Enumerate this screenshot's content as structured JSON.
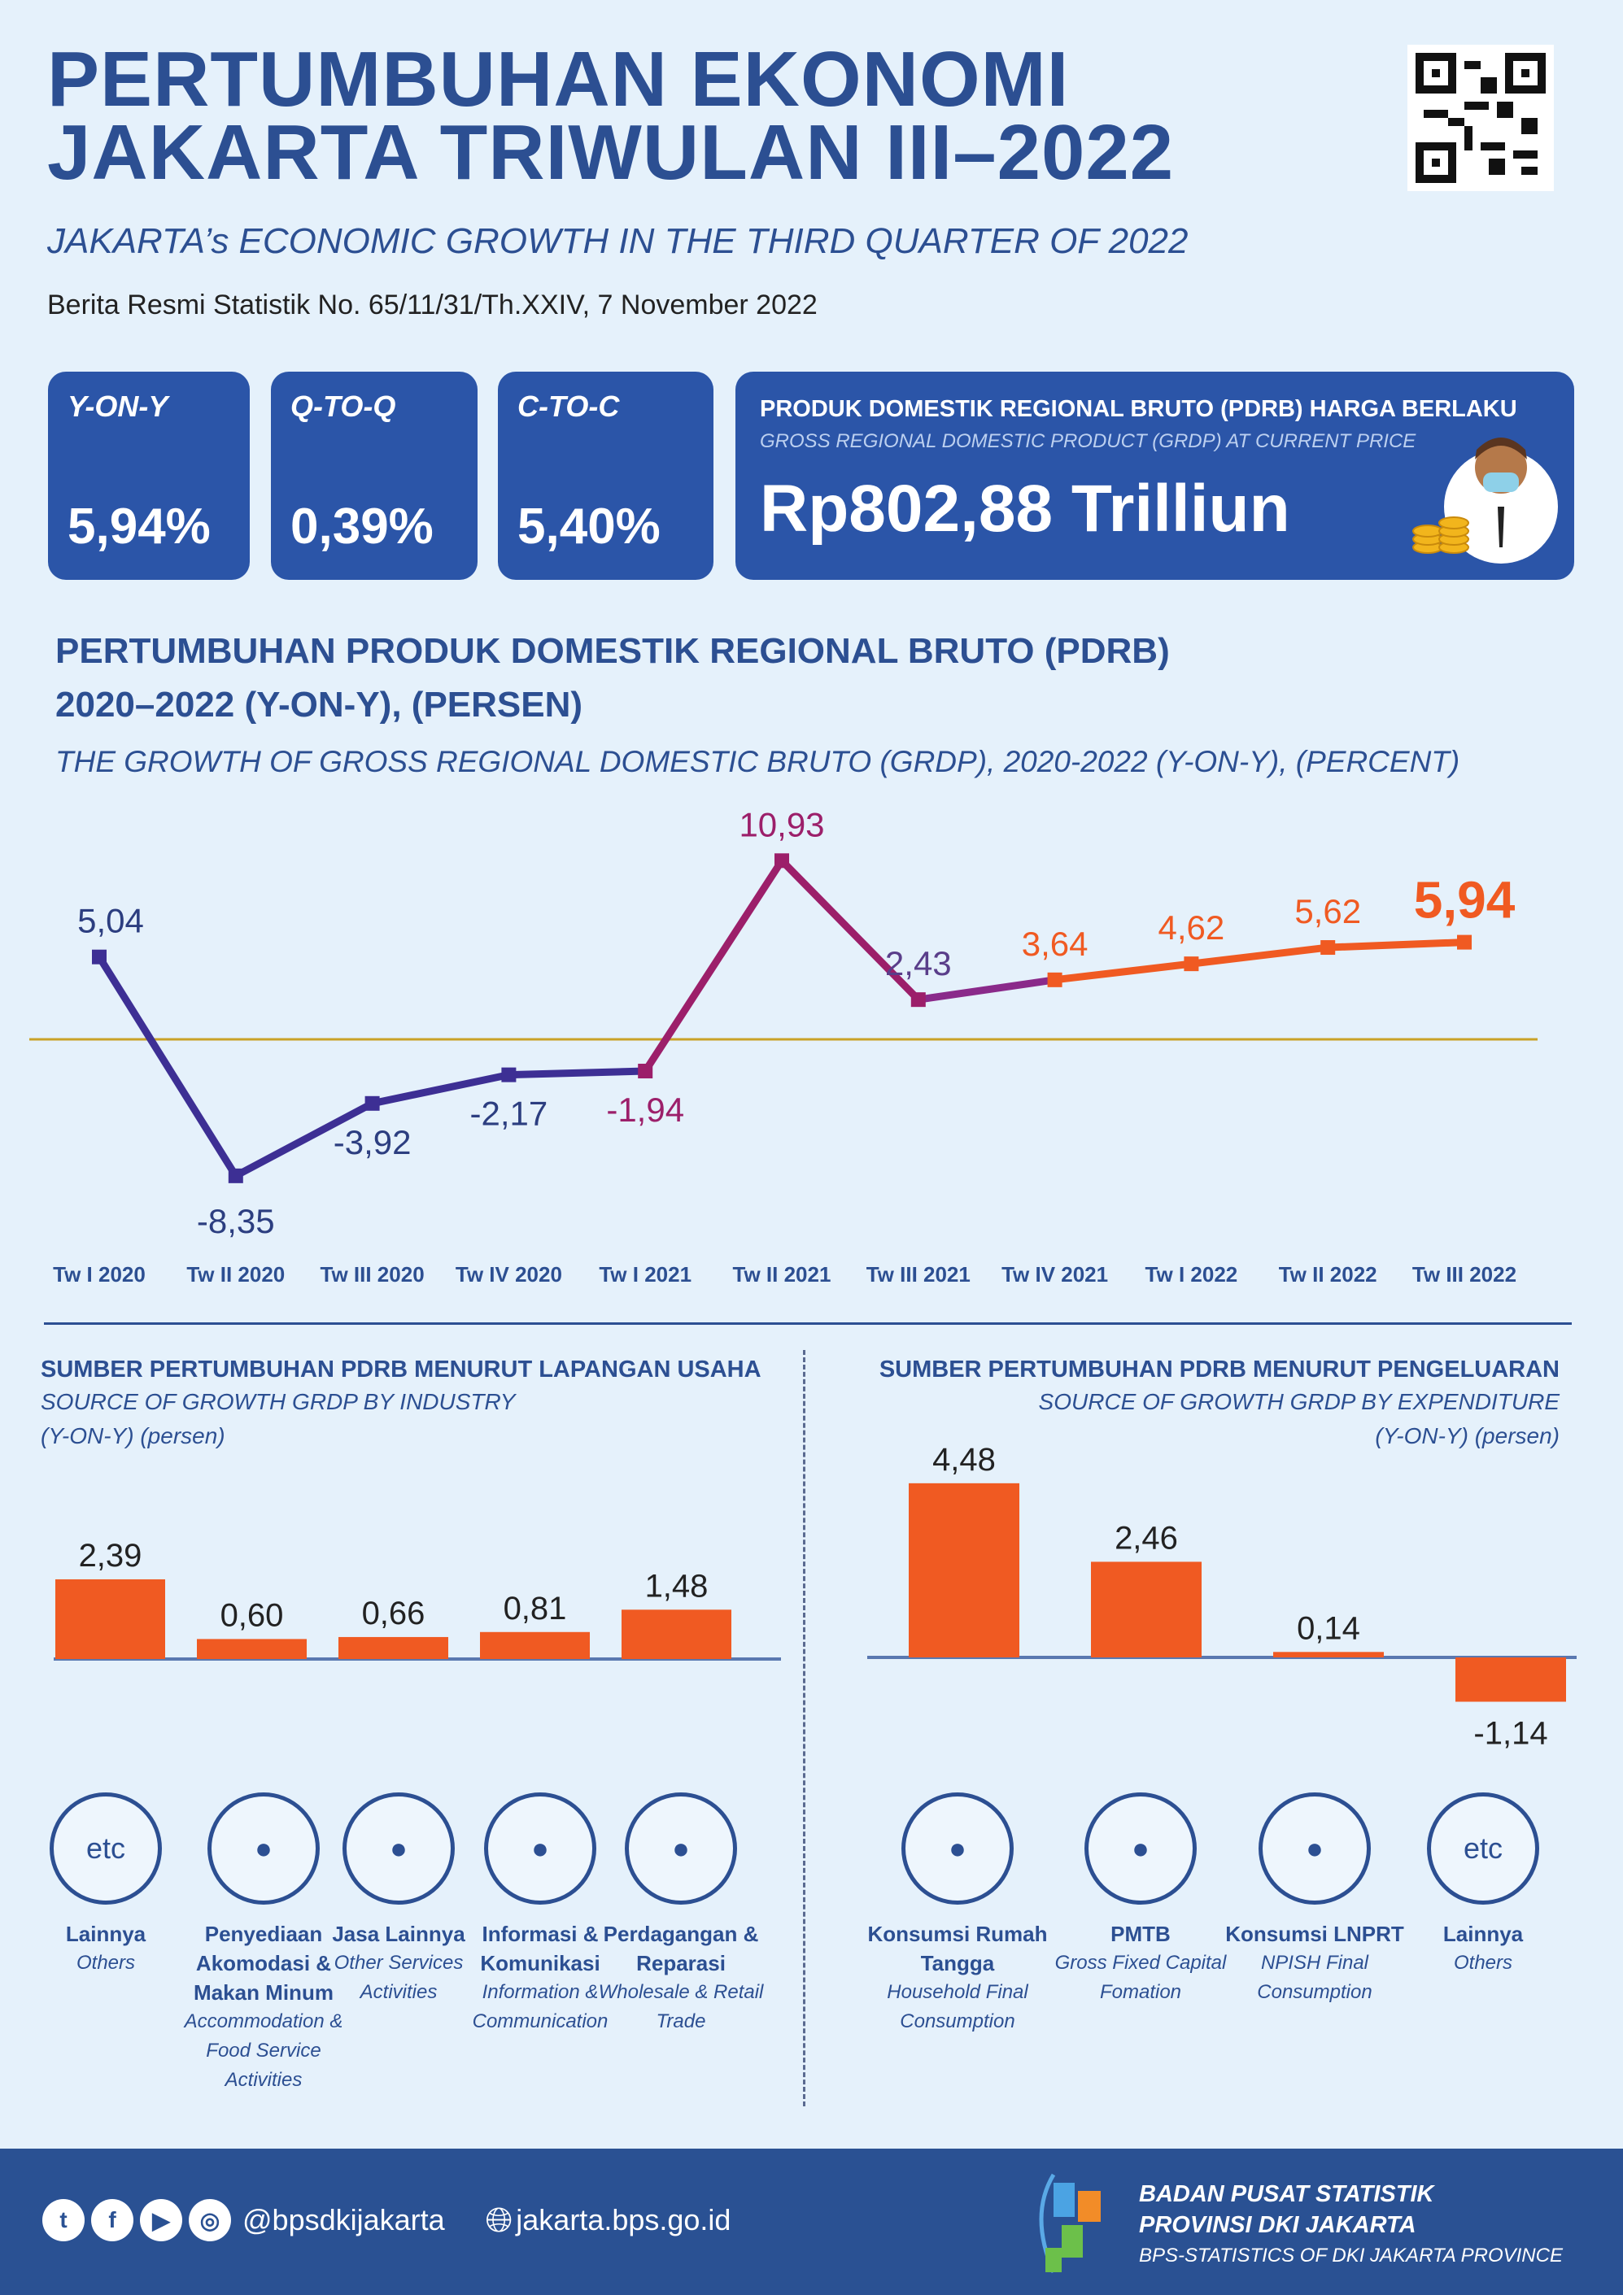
{
  "header": {
    "title_line1": "PERTUMBUHAN EKONOMI",
    "title_line2": "JAKARTA TRIWULAN III–2022",
    "subtitle": "JAKARTA’s ECONOMIC GROWTH IN THE THIRD QUARTER OF 2022",
    "release": "Berita Resmi Statistik No. 65/11/31/Th.XXIV, 7 November 2022"
  },
  "kpis": [
    {
      "label": "Y-ON-Y",
      "value": "5,94%"
    },
    {
      "label": "Q-TO-Q",
      "value": "0,39%"
    },
    {
      "label": "C-TO-C",
      "value": "5,40%"
    }
  ],
  "pdrb": {
    "title": "PRODUK DOMESTIK REGIONAL BRUTO (PDRB) HARGA BERLAKU",
    "subtitle": "GROSS REGIONAL DOMESTIC PRODUCT (GRDP) AT CURRENT PRICE",
    "value": "Rp802,88 Trilliun"
  },
  "colors": {
    "primary": "#2c4f92",
    "box": "#2b55a8",
    "orange": "#f05a22",
    "magenta": "#9c1f6a",
    "purple": "#3d2f94",
    "background": "#e5f1fb"
  },
  "chart_data": [
    {
      "type": "line",
      "title_line1": "PERTUMBUHAN PRODUK DOMESTIK REGIONAL BRUTO (PDRB)",
      "title_line2": "2020–2022 (Y-ON-Y), (PERSEN)",
      "subtitle": "THE GROWTH OF GROSS REGIONAL DOMESTIC BRUTO (GRDP), 2020-2022 (Y-ON-Y), (PERCENT)",
      "categories": [
        "Tw I 2020",
        "Tw II 2020",
        "Tw III 2020",
        "Tw IV 2020",
        "Tw I 2021",
        "Tw II 2021",
        "Tw III 2021",
        "Tw IV 2021",
        "Tw I 2022",
        "Tw II 2022",
        "Tw III 2022"
      ],
      "values": [
        5.04,
        -8.35,
        -3.92,
        -2.17,
        -1.94,
        10.93,
        2.43,
        3.64,
        4.62,
        5.62,
        5.94
      ],
      "labels": [
        "5,04",
        "-8,35",
        "-3,92",
        "-2,17",
        "-1,94",
        "10,93",
        "2,43",
        "3,64",
        "4,62",
        "5,62",
        "5,94"
      ]
    },
    {
      "type": "bar",
      "title": "SUMBER PERTUMBUHAN PDRB MENURUT LAPANGAN USAHA",
      "subtitle": "SOURCE OF GROWTH GRDP BY INDUSTRY",
      "unit": "(Y-ON-Y) (persen)",
      "values": [
        2.39,
        0.6,
        0.66,
        0.81,
        1.48
      ],
      "labels": [
        "2,39",
        "0,60",
        "0,66",
        "0,81",
        "1,48"
      ],
      "categories": [
        {
          "id": "Lainnya",
          "en": "Others",
          "icon": "etc"
        },
        {
          "id": "Penyediaan Akomodasi & Makan Minum",
          "en": "Accommodation & Food Service Activities",
          "icon": "hotel-icon"
        },
        {
          "id": "Jasa Lainnya",
          "en": "Other Services Activities",
          "icon": "services-icon"
        },
        {
          "id": "Informasi & Komunikasi",
          "en": "Information & Communication",
          "icon": "tower-icon"
        },
        {
          "id": "Perdagangan & Reparasi",
          "en": "Wholesale & Retail Trade",
          "icon": "trade-icon"
        }
      ]
    },
    {
      "type": "bar",
      "title": "SUMBER PERTUMBUHAN PDRB MENURUT PENGELUARAN",
      "subtitle": "SOURCE OF GROWTH GRDP BY EXPENDITURE",
      "unit": "(Y-ON-Y) (persen)",
      "values": [
        4.48,
        2.46,
        0.14,
        -1.14
      ],
      "labels": [
        "4,48",
        "2,46",
        "0,14",
        "-1,14"
      ],
      "categories": [
        {
          "id": "Konsumsi Rumah Tangga",
          "en": "Household Final Consumption",
          "icon": "household-icon"
        },
        {
          "id": "PMTB",
          "en": "Gross Fixed Capital Fomation",
          "icon": "robot-arm-icon"
        },
        {
          "id": "Konsumsi LNPRT",
          "en": "NPISH Final Consumption",
          "icon": "person-icon"
        },
        {
          "id": "Lainnya",
          "en": "Others",
          "icon": "etc"
        }
      ]
    }
  ],
  "footer": {
    "handle": "@bpsdkijakarta",
    "website": "jakarta.bps.go.id",
    "org1": "BADAN PUSAT STATISTIK",
    "org2": "PROVINSI DKI JAKARTA",
    "org3": "BPS-STATISTICS OF DKI JAKARTA PROVINCE",
    "social": [
      "twitter",
      "facebook",
      "youtube",
      "instagram"
    ]
  }
}
